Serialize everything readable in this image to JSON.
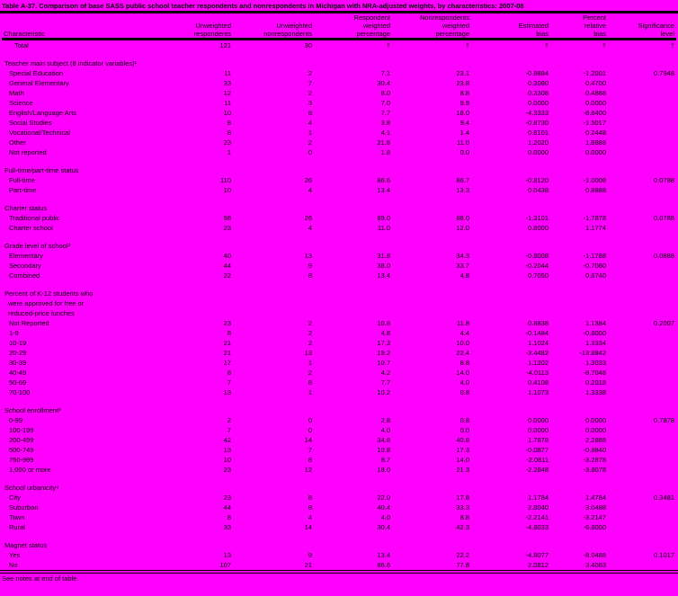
{
  "title": "Table A-37. Comparison of base SASS public school teacher respondents and nonrespondents in Michigan with NRA-adjusted weights, by characteristics: 2007-08",
  "footer": "See notes at end of table.",
  "colors": {
    "background": "#FF00FF",
    "text": "#000000",
    "rule": "#000000"
  },
  "columns": [
    {
      "lines": [
        "Characteristic"
      ]
    },
    {
      "lines": [
        "Unweighted",
        "respondents"
      ]
    },
    {
      "lines": [
        "Unweighted",
        "nonrespondents"
      ]
    },
    {
      "lines": [
        "Respondent",
        "weighted",
        "percentage"
      ]
    },
    {
      "lines": [
        "Nonrespondents",
        "weighted",
        "percentage"
      ]
    },
    {
      "lines": [
        "Estimated",
        "bias"
      ]
    },
    {
      "lines": [
        "Percent",
        "relative",
        "bias"
      ]
    },
    {
      "lines": [
        "Significance",
        "level"
      ]
    }
  ],
  "rows": [
    {
      "type": "total",
      "label": "Total",
      "values": [
        "121",
        "30",
        "†",
        "†",
        "†",
        "†",
        "†"
      ]
    },
    {
      "type": "spacer"
    },
    {
      "type": "section",
      "label": "Teacher main subject (8 indicator variables)¹"
    },
    {
      "type": "item",
      "label": "Special Education",
      "values": [
        "11",
        "2",
        "7.1",
        "23.1",
        "-0.8884",
        "-1.2001",
        "0.7948"
      ]
    },
    {
      "type": "item",
      "label": "General Elementary",
      "values": [
        "33",
        "7",
        "30.4",
        "23.8",
        "0.3080",
        "0.4700",
        ""
      ]
    },
    {
      "type": "item",
      "label": "Math",
      "values": [
        "12",
        "2",
        "8.0",
        "8.8",
        "0.3308",
        "0.4888",
        ""
      ]
    },
    {
      "type": "item",
      "label": "Science",
      "values": [
        "11",
        "3",
        "7.0",
        "9.9",
        "0.0000",
        "0.0000",
        ""
      ]
    },
    {
      "type": "item",
      "label": "English/Language Arts",
      "values": [
        "10",
        "8",
        "7.7",
        "18.0",
        "-4.3333",
        "-8.8400",
        ""
      ]
    },
    {
      "type": "item",
      "label": "Social Studies",
      "values": [
        "8",
        "4",
        "3.8",
        "9.4",
        "-0.8730",
        "-1.5017",
        ""
      ]
    },
    {
      "type": "item",
      "label": "Vocational/Technical",
      "values": [
        "8",
        "1",
        "4.1",
        "1.4",
        "0.8101",
        "0.2448",
        ""
      ]
    },
    {
      "type": "item",
      "label": "Other",
      "values": [
        "23",
        "2",
        "21.8",
        "11.0",
        "1.2020",
        "1.8888",
        ""
      ]
    },
    {
      "type": "item",
      "label": "Not reported",
      "values": [
        "1",
        "0",
        "1.8",
        "0.0",
        "0.0000",
        "0.0000",
        ""
      ]
    },
    {
      "type": "spacer"
    },
    {
      "type": "section",
      "label": "Full-time/part-time status"
    },
    {
      "type": "item",
      "label": "Full-time",
      "values": [
        "110",
        "26",
        "86.6",
        "86.7",
        "-0.8120",
        "-1.0008",
        "0.0788"
      ]
    },
    {
      "type": "item",
      "label": "Part-time",
      "values": [
        "10",
        "4",
        "13.4",
        "13.3",
        "0.0438",
        "0.8888",
        ""
      ]
    },
    {
      "type": "spacer"
    },
    {
      "type": "section",
      "label": "Charter status"
    },
    {
      "type": "item",
      "label": "Traditional public",
      "values": [
        "98",
        "26",
        "89.0",
        "88.0",
        "-1.3101",
        "-1.7878",
        "0.0788"
      ]
    },
    {
      "type": "item",
      "label": "Charter school",
      "values": [
        "23",
        "4",
        "11.0",
        "12.0",
        "0.8000",
        "1.1774",
        ""
      ]
    },
    {
      "type": "spacer"
    },
    {
      "type": "section",
      "label": "Grade level of school²"
    },
    {
      "type": "item",
      "label": "Elementary",
      "values": [
        "40",
        "13",
        "31.8",
        "34.3",
        "-0.8008",
        "-1.1788",
        "0.0888"
      ]
    },
    {
      "type": "item",
      "label": "Secondary",
      "values": [
        "44",
        "9",
        "38.0",
        "33.7",
        "-0.2044",
        "-0.7080",
        ""
      ]
    },
    {
      "type": "item",
      "label": "Combined",
      "values": [
        "22",
        "8",
        "13.4",
        "4.8",
        "0.7050",
        "0.8740",
        ""
      ]
    },
    {
      "type": "spacer"
    },
    {
      "type": "section",
      "label": "Percent of K-12 students who"
    },
    {
      "type": "section-cont",
      "label": "were approved for free or"
    },
    {
      "type": "section-cont",
      "label": "reduced-price lunches"
    },
    {
      "type": "item",
      "label": "Not Reported",
      "values": [
        "23",
        "2",
        "10.8",
        "11.8",
        "0.8838",
        "1.1384",
        "0.2007"
      ]
    },
    {
      "type": "item",
      "label": "1-9",
      "values": [
        "8",
        "2",
        "4.8",
        "4.4",
        "-0.1484",
        "-0.8000",
        ""
      ]
    },
    {
      "type": "item",
      "label": "10-19",
      "values": [
        "21",
        "2",
        "17.3",
        "10.0",
        "1.1024",
        "1.3334",
        ""
      ]
    },
    {
      "type": "item",
      "label": "20-29",
      "values": [
        "21",
        "13",
        "19.2",
        "22.4",
        "-3.4482",
        "-13.8842",
        ""
      ]
    },
    {
      "type": "item",
      "label": "30-39",
      "values": [
        "17",
        "1",
        "10.7",
        "8.8",
        "1.1302",
        "1.3033",
        ""
      ]
    },
    {
      "type": "item",
      "label": "40-49",
      "values": [
        "8",
        "2",
        "4.2",
        "14.0",
        "-4.0113",
        "-8.7048",
        ""
      ]
    },
    {
      "type": "item",
      "label": "50-69",
      "values": [
        "7",
        "8",
        "7.7",
        "4.0",
        "0.4108",
        "0.2018",
        ""
      ]
    },
    {
      "type": "item",
      "label": "70-100",
      "values": [
        "13",
        "1",
        "10.2",
        "0.8",
        "1.1073",
        "1.3338",
        ""
      ]
    },
    {
      "type": "spacer"
    },
    {
      "type": "section",
      "label": "School enrollment³"
    },
    {
      "type": "item",
      "label": "0-99",
      "values": [
        "2",
        "0",
        "2.8",
        "0.8",
        "0.0000",
        "0.0000",
        "0.7878"
      ]
    },
    {
      "type": "item",
      "label": "100-199",
      "values": [
        "7",
        "0",
        "4.0",
        "0.0",
        "0.0000",
        "0.0000",
        ""
      ]
    },
    {
      "type": "item",
      "label": "200-499",
      "values": [
        "42",
        "14",
        "34.8",
        "40.8",
        "1.7878",
        "2.2888",
        ""
      ]
    },
    {
      "type": "item",
      "label": "500-749",
      "values": [
        "13",
        "7",
        "10.8",
        "17.3",
        "-0.0877",
        "-0.8840",
        ""
      ]
    },
    {
      "type": "item",
      "label": "750-999",
      "values": [
        "10",
        "8",
        "8.7",
        "14.0",
        "-2.0811",
        "-3.2878",
        ""
      ]
    },
    {
      "type": "item",
      "label": "1,000 or more",
      "values": [
        "23",
        "12",
        "18.0",
        "21.3",
        "-2.2848",
        "-3.8078",
        ""
      ]
    },
    {
      "type": "spacer"
    },
    {
      "type": "section",
      "label": "School urbanicity⁴"
    },
    {
      "type": "item",
      "label": "City",
      "values": [
        "23",
        "8",
        "22.0",
        "17.8",
        "1.1784",
        "1.4784",
        "0.3481"
      ]
    },
    {
      "type": "item",
      "label": "Suburban",
      "values": [
        "44",
        "8",
        "40.4",
        "33.3",
        "2.8040",
        "3.0488",
        ""
      ]
    },
    {
      "type": "item",
      "label": "Town",
      "values": [
        "8",
        "4",
        "4.0",
        "8.8",
        "-2.2141",
        "-3.2147",
        ""
      ]
    },
    {
      "type": "item",
      "label": "Rural",
      "values": [
        "33",
        "14",
        "30.4",
        "42.3",
        "-4.8033",
        "-6.8000",
        ""
      ]
    },
    {
      "type": "spacer"
    },
    {
      "type": "section",
      "label": "Magnet status"
    },
    {
      "type": "item",
      "label": "Yes",
      "values": [
        "13",
        "9",
        "13.4",
        "22.2",
        "-4.8077",
        "-8.0488",
        "0.1017"
      ]
    },
    {
      "type": "item",
      "label": "No",
      "values": [
        "107",
        "21",
        "86.6",
        "77.8",
        "2.0812",
        "3.4083",
        ""
      ]
    }
  ]
}
